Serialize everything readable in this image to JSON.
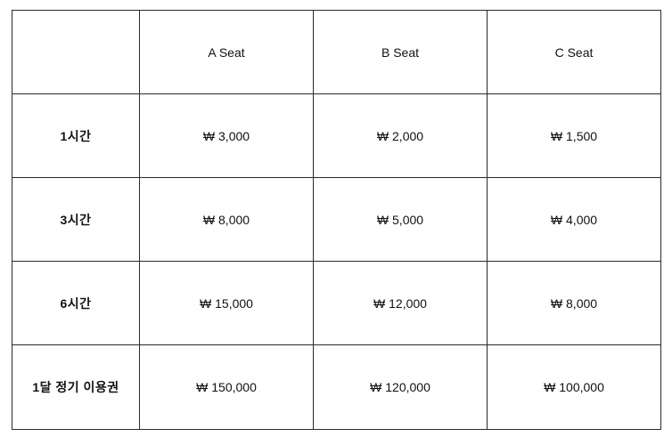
{
  "table": {
    "corner": "",
    "columns": [
      "A Seat",
      "B Seat",
      "C Seat"
    ],
    "rows": [
      {
        "label": "1시간",
        "prices": [
          "₩ 3,000",
          "₩ 2,000",
          "₩ 1,500"
        ]
      },
      {
        "label": "3시간",
        "prices": [
          "₩ 8,000",
          "₩ 5,000",
          "₩ 4,000"
        ]
      },
      {
        "label": "6시간",
        "prices": [
          "₩ 15,000",
          "₩ 12,000",
          "₩ 8,000"
        ]
      },
      {
        "label": "1달 정기 이용권",
        "prices": [
          "₩ 150,000",
          "₩ 120,000",
          "₩ 100,000"
        ]
      }
    ]
  }
}
